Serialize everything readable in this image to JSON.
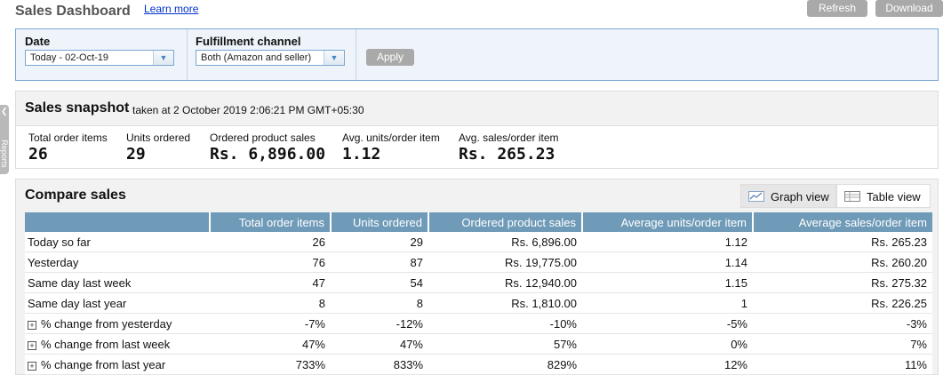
{
  "header": {
    "title": "Sales Dashboard",
    "learn_more": "Learn more",
    "refresh_label": "Refresh",
    "download_label": "Download"
  },
  "filters": {
    "date_label": "Date",
    "date_value": "Today - 02-Oct-19",
    "channel_label": "Fulfillment channel",
    "channel_value": "Both (Amazon and seller)",
    "apply_label": "Apply"
  },
  "side_tab": {
    "label": "Reports"
  },
  "snapshot": {
    "title": "Sales snapshot",
    "taken_at": "taken at 2 October 2019 2:06:21 PM GMT+05:30",
    "metrics": [
      {
        "label": "Total order items",
        "value": "26"
      },
      {
        "label": "Units ordered",
        "value": "29"
      },
      {
        "label": "Ordered product sales",
        "value": "Rs. 6,896.00"
      },
      {
        "label": "Avg. units/order item",
        "value": "1.12"
      },
      {
        "label": "Avg. sales/order item",
        "value": "Rs. 265.23"
      }
    ]
  },
  "compare": {
    "title": "Compare sales",
    "graph_view": "Graph view",
    "table_view": "Table view",
    "columns": [
      "",
      "Total order items",
      "Units ordered",
      "Ordered product sales",
      "Average units/order item",
      "Average sales/order item"
    ],
    "rows": [
      {
        "label": "Today so far",
        "expandable": false,
        "cells": [
          "26",
          "29",
          "Rs. 6,896.00",
          "1.12",
          "Rs. 265.23"
        ]
      },
      {
        "label": "Yesterday",
        "expandable": false,
        "cells": [
          "76",
          "87",
          "Rs. 19,775.00",
          "1.14",
          "Rs. 260.20"
        ]
      },
      {
        "label": "Same day last week",
        "expandable": false,
        "cells": [
          "47",
          "54",
          "Rs. 12,940.00",
          "1.15",
          "Rs. 275.32"
        ]
      },
      {
        "label": "Same day last year",
        "expandable": false,
        "cells": [
          "8",
          "8",
          "Rs. 1,810.00",
          "1",
          "Rs. 226.25"
        ]
      },
      {
        "label": "% change from yesterday",
        "expandable": true,
        "cells": [
          "-7%",
          "-12%",
          "-10%",
          "-5%",
          "-3%"
        ]
      },
      {
        "label": "% change from last week",
        "expandable": true,
        "cells": [
          "47%",
          "47%",
          "57%",
          "0%",
          "7%"
        ]
      },
      {
        "label": "% change from last year",
        "expandable": true,
        "cells": [
          "733%",
          "833%",
          "829%",
          "12%",
          "11%"
        ]
      }
    ]
  },
  "colors": {
    "table_header": "#6f9ab8",
    "negative": "#e0201c",
    "positive": "#1a8a1a",
    "filter_border": "#7aa7d3"
  }
}
